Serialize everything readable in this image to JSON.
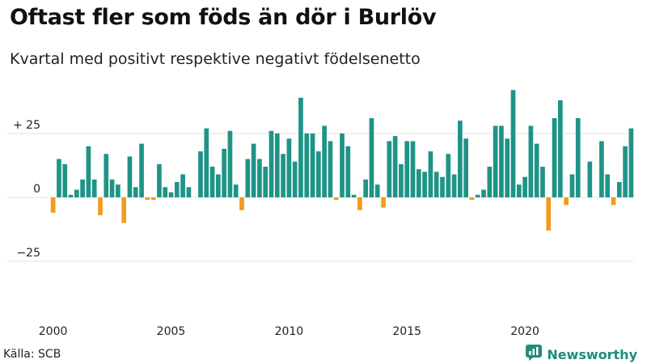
{
  "title": "Oftast fler som föds än dör i Burlöv",
  "subtitle": "Kvartal med positivt respektive negativt födelsenetto",
  "source": "Källa: SCB",
  "brand": {
    "name": "Newsworthy",
    "logo_icon": "newsworthy-logo-icon"
  },
  "colors": {
    "positive": "#1f9486",
    "negative": "#f29b1f",
    "grid": "#e3e3e3"
  },
  "chart_data": {
    "type": "bar",
    "x_start": {
      "year": 2000,
      "quarter": 1
    },
    "x_ticks": [
      "2000",
      "2005",
      "2010",
      "2015",
      "2020"
    ],
    "y_ticks": [
      25,
      0,
      -25
    ],
    "y_tick_labels": [
      "+ 25",
      "0",
      "−25"
    ],
    "ylim": [
      -45,
      45
    ],
    "grid": true,
    "values": [
      -6,
      15,
      13,
      1,
      3,
      7,
      20,
      7,
      -7,
      17,
      7,
      5,
      -10,
      16,
      4,
      21,
      -1,
      -1,
      13,
      4,
      2,
      6,
      9,
      4,
      0,
      18,
      27,
      12,
      9,
      19,
      26,
      5,
      -5,
      15,
      21,
      15,
      12,
      26,
      25,
      17,
      23,
      14,
      39,
      25,
      25,
      18,
      28,
      22,
      -1,
      25,
      20,
      1,
      -5,
      7,
      31,
      5,
      -4,
      22,
      24,
      13,
      22,
      22,
      11,
      10,
      18,
      10,
      8,
      17,
      9,
      30,
      23,
      -1,
      1,
      3,
      12,
      28,
      28,
      23,
      42,
      5,
      8,
      28,
      21,
      12,
      -13,
      31,
      38,
      -3,
      9,
      31,
      0,
      14,
      0,
      22,
      9,
      -3,
      6,
      20,
      27
    ]
  }
}
